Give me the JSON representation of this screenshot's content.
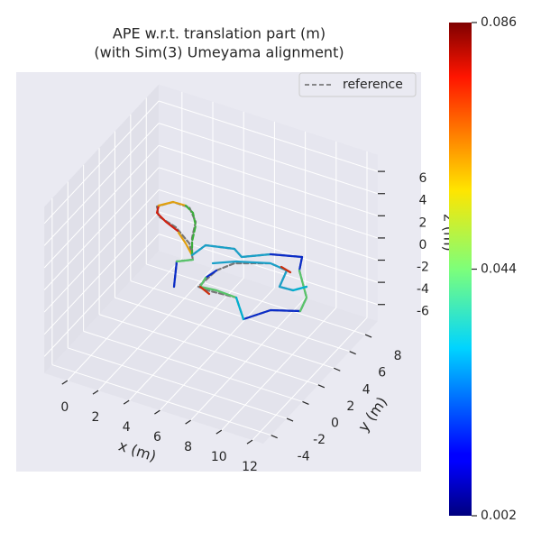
{
  "chart_data": {
    "type": "line3d",
    "title": "APE w.r.t. translation part (m)",
    "subtitle": "(with Sim(3) Umeyama alignment)",
    "xlabel": "x (m)",
    "ylabel": "y (m)",
    "zlabel": "z (m)",
    "xlim": [
      -1.5,
      12.7
    ],
    "ylim": [
      -5,
      9.6
    ],
    "zlim": [
      -7.5,
      7.5
    ],
    "xticks": [
      0,
      2,
      4,
      6,
      8,
      10,
      12
    ],
    "yticks": [
      -4,
      -2,
      0,
      2,
      4,
      6,
      8
    ],
    "zticks": [
      -6,
      -4,
      -2,
      0,
      2,
      4,
      6
    ],
    "grid": true,
    "legend": "upper right",
    "series": [
      {
        "name": "reference",
        "color": "#666666",
        "dash": true
      }
    ],
    "colorbar": {
      "cmap": "jet",
      "clim": [
        0.002,
        0.086
      ],
      "ticks": [
        0.002,
        0.044,
        0.086
      ]
    }
  }
}
